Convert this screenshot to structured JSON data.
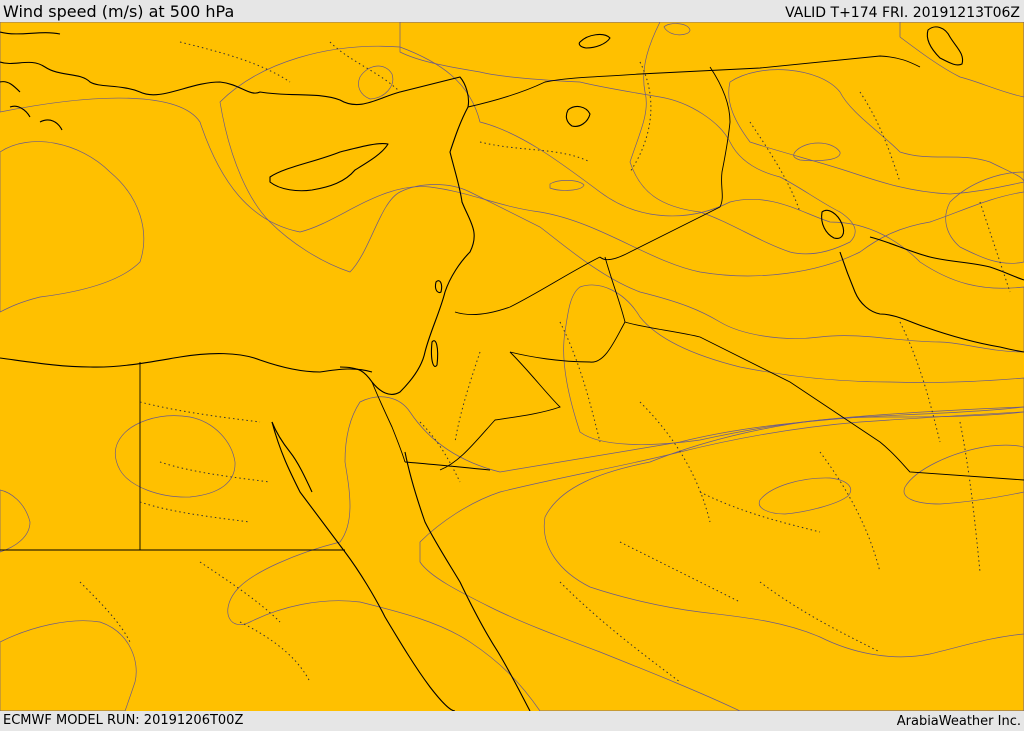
{
  "header": {
    "title": "Wind speed (m/s) at 500 hPa",
    "valid": "VALID T+174 FRI. 20191213T06Z"
  },
  "footer": {
    "model_run": "ECMWF MODEL RUN: 20191206T00Z",
    "credit": "ArabiaWeather Inc."
  },
  "colors": {
    "pale": "#fde0b4",
    "yellow": "#ffff00",
    "gold": "#ffe000",
    "amber": "#ffc000",
    "orange": "#ff9f00",
    "dark_orange": "#ff8000",
    "red_orange": "#ff5a00",
    "red": "#ff3a14",
    "water": "#ffffff"
  }
}
